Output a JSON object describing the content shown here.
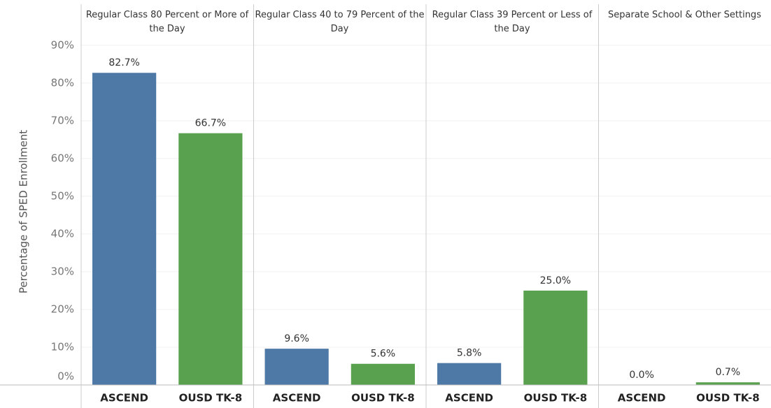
{
  "chart_data": {
    "type": "bar",
    "y_label": "Percentage of SPED Enrollment",
    "categories": [
      "Regular Class 80 Percent or More of the Day",
      "Regular Class 40 to 79 Percent of the Day",
      "Regular Class 39 Percent or Less of the Day",
      "Separate School & Other Settings"
    ],
    "series": [
      {
        "name": "ASCEND",
        "color": "#4e79a7",
        "values": [
          82.7,
          9.6,
          5.8,
          0.0
        ],
        "value_labels": [
          "82.7%",
          "9.6%",
          "5.8%",
          "0.0%"
        ]
      },
      {
        "name": "OUSD TK-8",
        "color": "#59a14f",
        "values": [
          66.7,
          5.6,
          25.0,
          0.7
        ],
        "value_labels": [
          "66.7%",
          "5.6%",
          "25.0%",
          "0.7%"
        ]
      }
    ],
    "ylim": [
      0,
      92
    ],
    "yticks": [
      {
        "value": 0,
        "label": "0%"
      },
      {
        "value": 10,
        "label": "10%"
      },
      {
        "value": 20,
        "label": "20%"
      },
      {
        "value": 30,
        "label": "30%"
      },
      {
        "value": 40,
        "label": "40%"
      },
      {
        "value": 50,
        "label": "50%"
      },
      {
        "value": 60,
        "label": "60%"
      },
      {
        "value": 70,
        "label": "70%"
      },
      {
        "value": 80,
        "label": "80%"
      },
      {
        "value": 90,
        "label": "90%"
      }
    ],
    "grid": true
  }
}
